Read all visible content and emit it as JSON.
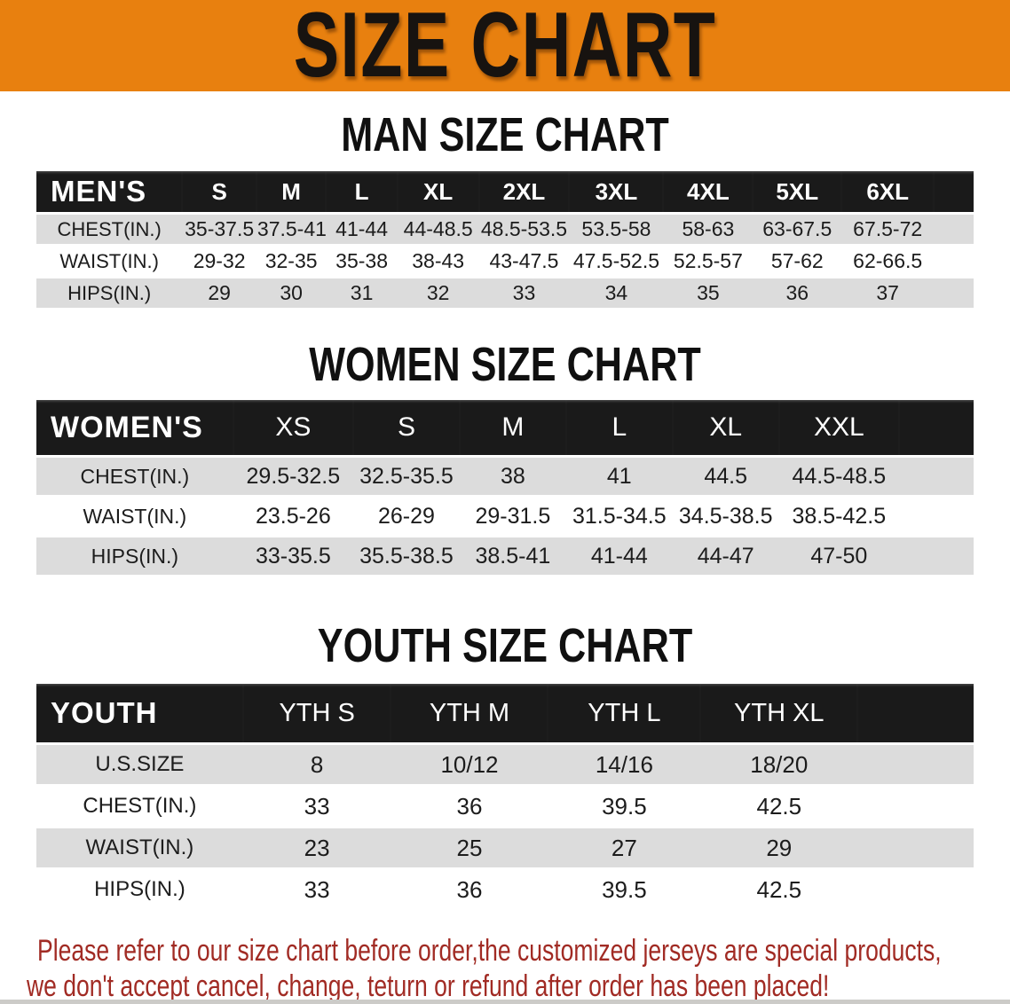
{
  "banner": {
    "title": "SIZE CHART"
  },
  "colors": {
    "banner_bg": "#E8800F",
    "header_bar": "#1A1A1A",
    "row_shade": "#DCDCDC",
    "disclaimer_text": "#A12B24"
  },
  "sections": [
    {
      "heading": "MAN SIZE CHART",
      "table": {
        "header_label": "MEN'S",
        "columns": [
          "S",
          "M",
          "L",
          "XL",
          "2XL",
          "3XL",
          "4XL",
          "5XL",
          "6XL"
        ],
        "rows": [
          {
            "label": "CHEST(IN.)",
            "values": [
              "35-37.5",
              "37.5-41",
              "41-44",
              "44-48.5",
              "48.5-53.5",
              "53.5-58",
              "58-63",
              "63-67.5",
              "67.5-72"
            ]
          },
          {
            "label": "WAIST(IN.)",
            "values": [
              "29-32",
              "32-35",
              "35-38",
              "38-43",
              "43-47.5",
              "47.5-52.5",
              "52.5-57",
              "57-62",
              "62-66.5"
            ]
          },
          {
            "label": "HIPS(IN.)",
            "values": [
              "29",
              "30",
              "31",
              "32",
              "33",
              "34",
              "35",
              "36",
              "37"
            ]
          }
        ]
      }
    },
    {
      "heading": "WOMEN SIZE CHART",
      "table": {
        "header_label": "WOMEN'S",
        "columns": [
          "XS",
          "S",
          "M",
          "L",
          "XL",
          "XXL"
        ],
        "rows": [
          {
            "label": "CHEST(IN.)",
            "values": [
              "29.5-32.5",
              "32.5-35.5",
              "38",
              "41",
              "44.5",
              "44.5-48.5"
            ]
          },
          {
            "label": "WAIST(IN.)",
            "values": [
              "23.5-26",
              "26-29",
              "29-31.5",
              "31.5-34.5",
              "34.5-38.5",
              "38.5-42.5"
            ]
          },
          {
            "label": "HIPS(IN.)",
            "values": [
              "33-35.5",
              "35.5-38.5",
              "38.5-41",
              "41-44",
              "44-47",
              "47-50"
            ]
          }
        ]
      }
    },
    {
      "heading": "YOUTH SIZE CHART",
      "table": {
        "header_label": "YOUTH",
        "columns": [
          "YTH S",
          "YTH M",
          "YTH L",
          "YTH XL"
        ],
        "rows": [
          {
            "label": "U.S.SIZE",
            "values": [
              "8",
              "10/12",
              "14/16",
              "18/20"
            ]
          },
          {
            "label": "CHEST(IN.)",
            "values": [
              "33",
              "36",
              "39.5",
              "42.5"
            ]
          },
          {
            "label": "WAIST(IN.)",
            "values": [
              "23",
              "25",
              "27",
              "29"
            ]
          },
          {
            "label": "HIPS(IN.)",
            "values": [
              "33",
              "36",
              "39.5",
              "42.5"
            ]
          }
        ]
      }
    }
  ],
  "disclaimer": {
    "line1": "Please refer to our size chart before order,the customized jerseys are special products,",
    "line2": "we don't accept cancel, change, teturn or refund after order has been placed!"
  }
}
